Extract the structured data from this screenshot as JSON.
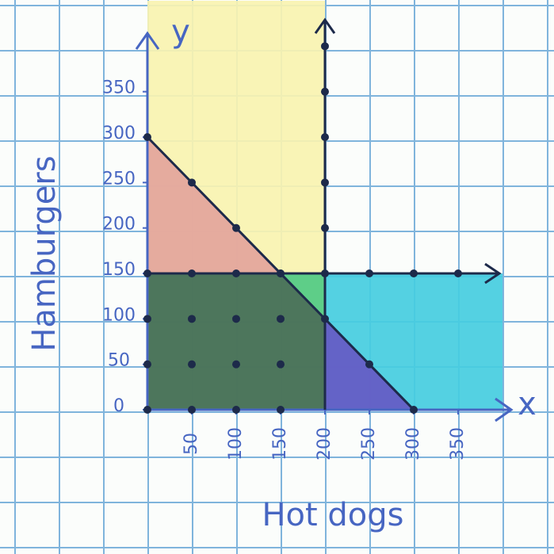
{
  "chart_data": {
    "type": "inequality",
    "x_axis_label": "Hot dogs",
    "y_axis_label": "Hamburgers",
    "x_axis_name": "x",
    "y_axis_name": "y",
    "xlim": [
      0,
      400
    ],
    "ylim": [
      0,
      450
    ],
    "xticks": [
      50,
      100,
      150,
      200,
      250,
      300,
      350
    ],
    "yticks": [
      0,
      50,
      100,
      150,
      200,
      250,
      300,
      350
    ],
    "regions": [
      {
        "color": "#f8f3b0",
        "x": [
          0,
          200,
          200,
          0
        ],
        "y": [
          0,
          0,
          450,
          450
        ]
      },
      {
        "color": "#45cde0",
        "x": [
          200,
          400,
          400,
          200
        ],
        "y": [
          0,
          0,
          150,
          150
        ]
      },
      {
        "color": "#e3a49c",
        "x": [
          0,
          150,
          0
        ],
        "y": [
          150,
          150,
          300
        ]
      },
      {
        "color": "#3e6a55",
        "x": [
          0,
          200,
          200,
          0
        ],
        "y": [
          0,
          0,
          150,
          150
        ]
      },
      {
        "color": "#6659c4",
        "x": [
          200,
          300,
          200
        ],
        "y": [
          0,
          0,
          100
        ]
      },
      {
        "color": "#5fd68c",
        "x": [
          150,
          200,
          200
        ],
        "y": [
          150,
          150,
          100
        ]
      }
    ],
    "lines": [
      {
        "color": "#1d2a4a",
        "x": [
          0,
          300
        ],
        "y": [
          300,
          0
        ]
      }
    ],
    "dots": {
      "color": "#1d2a4a",
      "x": [
        0,
        50,
        100,
        150,
        200,
        250,
        300,
        0,
        50,
        100,
        150,
        0,
        50,
        100,
        150,
        0,
        50,
        100,
        150,
        0,
        50,
        100,
        150,
        200,
        200,
        200,
        200,
        200,
        200,
        250,
        300,
        350
      ],
      "y": [
        300,
        250,
        200,
        150,
        100,
        50,
        0,
        0,
        0,
        0,
        0,
        50,
        50,
        50,
        50,
        100,
        100,
        100,
        100,
        150,
        150,
        150,
        150,
        150,
        200,
        250,
        300,
        350,
        400,
        150,
        150,
        150
      ]
    }
  }
}
